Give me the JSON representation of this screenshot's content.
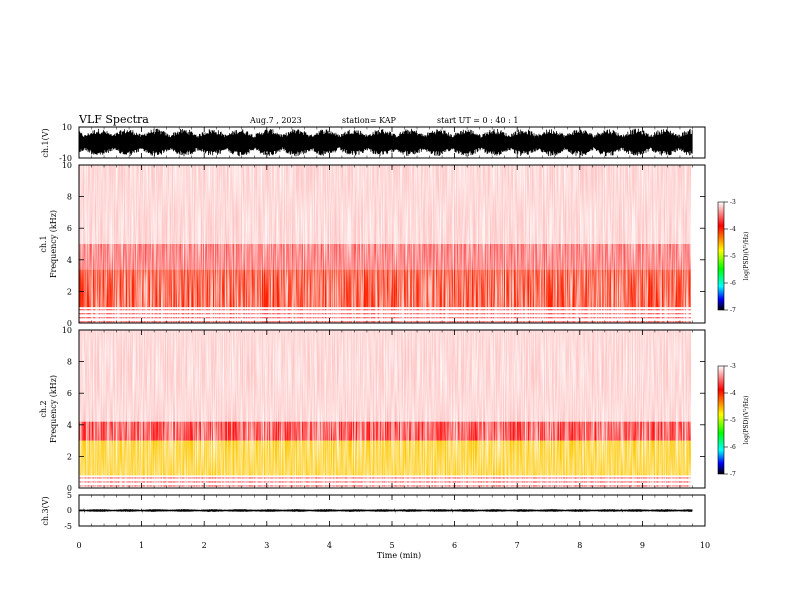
{
  "header": {
    "title": "VLF Spectra",
    "date": "Aug.7 , 2023",
    "station": "station= KAP",
    "start": "start UT = 0 : 40 : 1"
  },
  "chart_data": [
    {
      "type": "line",
      "name": "ch1-waveform",
      "ylabel": "ch.1(V)",
      "ylim": [
        -10,
        10
      ],
      "yticks": [
        "10",
        "-10"
      ],
      "xlim": [
        0,
        10
      ],
      "data_until_min": 9.8,
      "amplitude_range": [
        -9,
        9
      ],
      "color": "#000000"
    },
    {
      "type": "heatmap",
      "name": "ch1-spectrogram",
      "ylabel": "ch.1\nFrequency (kHz)",
      "ylabel_line1": "ch.1",
      "ylabel_line2": "Frequency (kHz)",
      "ylim": [
        0,
        10
      ],
      "yticks": [
        "0",
        "2",
        "4",
        "6",
        "8",
        "10"
      ],
      "xlim": [
        0,
        10
      ],
      "data_until_min": 9.8,
      "level_bands_khz": [
        {
          "from": 0,
          "to": 1.0,
          "level": "mixed-red-white"
        },
        {
          "from": 1.0,
          "to": 3.4,
          "level": -4.0
        },
        {
          "from": 3.4,
          "to": 5.0,
          "level": -3.6
        },
        {
          "from": 5.0,
          "to": 10.0,
          "level": -3.2
        }
      ],
      "colorbar": {
        "label": "log(PSD)(V²/Hz)",
        "range": [
          -7,
          -3
        ],
        "ticks": [
          "-3",
          "-4",
          "-5",
          "-6",
          "-7"
        ],
        "colors": [
          "#ffffff",
          "#ff0000",
          "#ffff00",
          "#00ff00",
          "#00ffff",
          "#0000ff",
          "#000000"
        ]
      }
    },
    {
      "type": "heatmap",
      "name": "ch2-spectrogram",
      "ylabel_line1": "ch.2",
      "ylabel_line2": "Frequency (kHz)",
      "ylim": [
        0,
        10
      ],
      "yticks": [
        "0",
        "2",
        "4",
        "6",
        "8",
        "10"
      ],
      "xlim": [
        0,
        10
      ],
      "data_until_min": 9.8,
      "level_bands_khz": [
        {
          "from": 0,
          "to": 0.8,
          "level": "mixed-red-white"
        },
        {
          "from": 0.8,
          "to": 3.0,
          "level": -4.6
        },
        {
          "from": 3.0,
          "to": 4.2,
          "level": -3.8
        },
        {
          "from": 4.2,
          "to": 10.0,
          "level": -3.2
        }
      ],
      "colorbar": {
        "label": "log(PSD)(V²/Hz)",
        "range": [
          -7,
          -3
        ],
        "ticks": [
          "-3",
          "-4",
          "-5",
          "-6",
          "-7"
        ],
        "colors": [
          "#ffffff",
          "#ff0000",
          "#ffff00",
          "#00ff00",
          "#00ffff",
          "#0000ff",
          "#000000"
        ]
      }
    },
    {
      "type": "line",
      "name": "ch3-waveform",
      "ylabel": "ch.3(V)",
      "ylim": [
        -5,
        5
      ],
      "yticks": [
        "5",
        "0",
        "-5"
      ],
      "xlim": [
        0,
        10
      ],
      "data_until_min": 9.8,
      "amplitude_range": [
        -0.4,
        0.4
      ],
      "color": "#000000"
    }
  ],
  "xaxis": {
    "label": "Time (min)",
    "range": [
      0,
      10
    ],
    "ticks": [
      "0",
      "1",
      "2",
      "3",
      "4",
      "5",
      "6",
      "7",
      "8",
      "9",
      "10"
    ]
  }
}
